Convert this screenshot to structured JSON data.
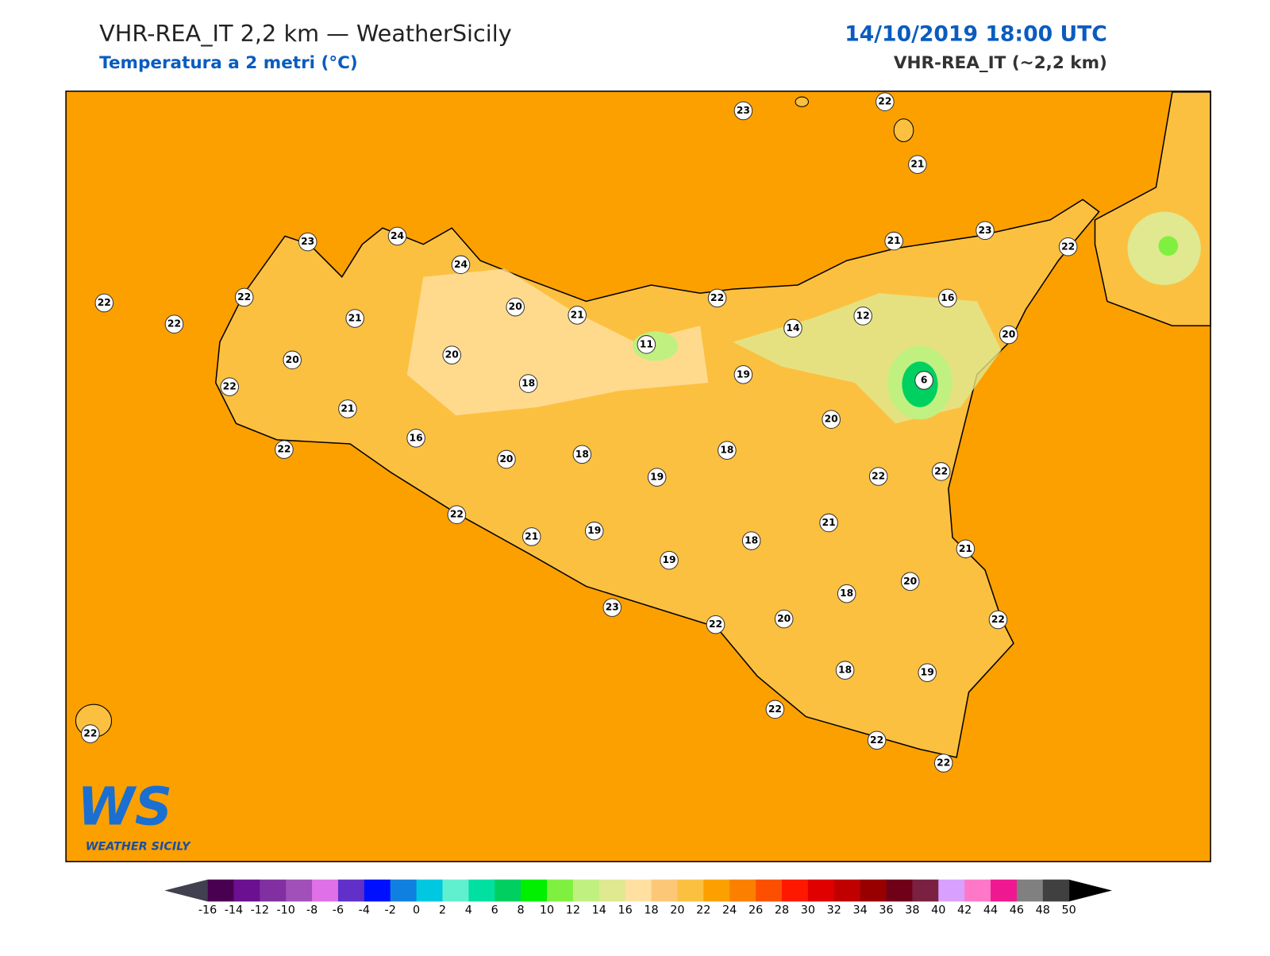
{
  "header": {
    "title": "VHR-REA_IT 2,2 km — WeatherSicily",
    "subtitle": "Temperatura a 2 metri (°C)",
    "datetime": "14/10/2019 18:00 UTC",
    "model": "VHR-REA_IT (~2,2 km)"
  },
  "map": {
    "background_color": "#fca000",
    "land_color": "#fcc040",
    "stations": {
      "values": [
        23,
        22,
        21,
        23,
        24,
        24,
        21,
        23,
        22,
        22,
        22,
        22,
        21,
        20,
        21,
        22,
        16,
        12,
        14,
        11,
        20,
        20,
        20,
        22,
        18,
        19,
        6,
        21,
        16,
        20,
        22,
        18,
        18,
        20,
        19,
        22,
        22,
        22,
        21,
        21,
        19,
        18,
        21,
        19,
        20,
        18,
        23,
        22,
        20,
        22,
        18,
        19,
        22,
        22,
        22,
        22
      ]
    }
  },
  "logo": {
    "mark": "WS",
    "text": "WEATHER SICILY"
  },
  "colorbar": {
    "ticks": [
      -16,
      -14,
      -12,
      -10,
      -8,
      -6,
      -4,
      -2,
      0,
      2,
      4,
      6,
      8,
      10,
      12,
      14,
      16,
      18,
      20,
      22,
      24,
      26,
      28,
      30,
      32,
      34,
      36,
      38,
      40,
      42,
      44,
      46,
      48,
      50
    ],
    "colors": [
      "#4a0050",
      "#6a1090",
      "#8030a0",
      "#a050b8",
      "#e070e8",
      "#6030c8",
      "#0010ff",
      "#1080e0",
      "#00c8e0",
      "#60f0d0",
      "#00e0a0",
      "#00d060",
      "#00f000",
      "#80f040",
      "#c0f080",
      "#e0e890",
      "#ffe0a0",
      "#fcc878",
      "#fcc040",
      "#fca000",
      "#fc8000",
      "#fc5000",
      "#ff1800",
      "#e00000",
      "#c00000",
      "#980000",
      "#700018",
      "#7a2040",
      "#d8a0ff",
      "#ff78c8",
      "#f01890",
      "#808080",
      "#404040"
    ],
    "under_color": "#404050",
    "over_color": "#000000"
  }
}
